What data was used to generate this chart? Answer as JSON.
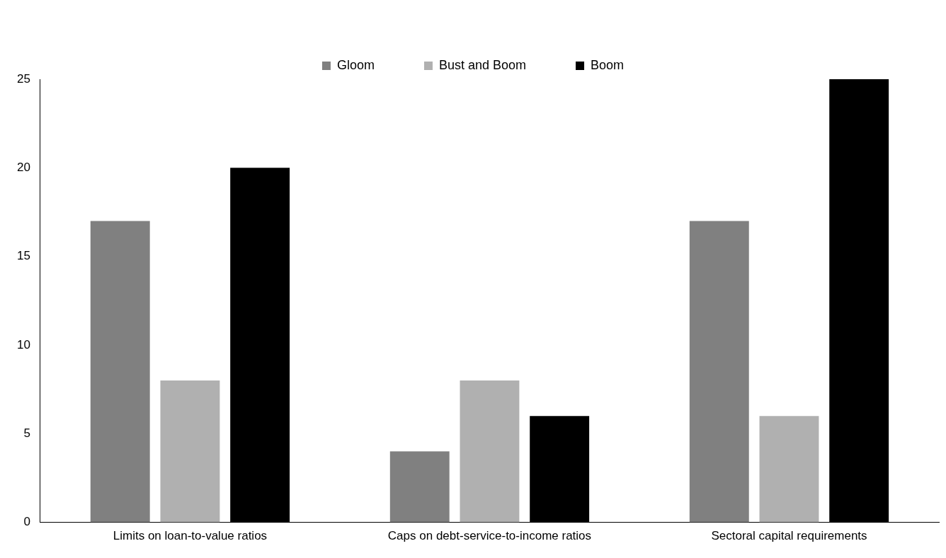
{
  "chart_data": {
    "type": "bar",
    "categories": [
      "Limits on loan-to-value ratios",
      "Caps on debt-service-to-income ratios",
      "Sectoral capital requirements"
    ],
    "series": [
      {
        "name": "Gloom",
        "color": "#808080",
        "values": [
          17,
          4,
          17
        ]
      },
      {
        "name": "Bust and Boom",
        "color": "#b0b0b0",
        "values": [
          8,
          8,
          6
        ]
      },
      {
        "name": "Boom",
        "color": "#000000",
        "values": [
          20,
          6,
          25
        ]
      }
    ],
    "ylim": [
      0,
      25
    ],
    "yticks": [
      0,
      5,
      10,
      15,
      20,
      25
    ],
    "grid": false,
    "legend": "top"
  }
}
